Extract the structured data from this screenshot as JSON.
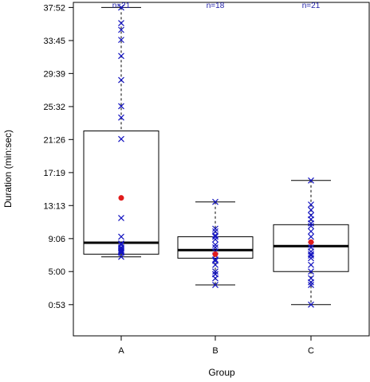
{
  "chart_data": {
    "type": "boxplot",
    "xlabel": "Group",
    "ylabel": "Duration (min:sec)",
    "categories": [
      "A",
      "B",
      "C"
    ],
    "y_ticks": [
      {
        "value": 53,
        "label": "0:53"
      },
      {
        "value": 300,
        "label": "5:00"
      },
      {
        "value": 546,
        "label": "9:06"
      },
      {
        "value": 793,
        "label": "13:13"
      },
      {
        "value": 1039,
        "label": "17:19"
      },
      {
        "value": 1286,
        "label": "21:26"
      },
      {
        "value": 1532,
        "label": "25:32"
      },
      {
        "value": 1779,
        "label": "29:39"
      },
      {
        "value": 2025,
        "label": "33:45"
      },
      {
        "value": 2272,
        "label": "37:52"
      }
    ],
    "ylim": [
      -180,
      2310
    ],
    "grid": false,
    "colors": {
      "points": "#1515c0",
      "mean": "#e11b1b",
      "n_labels": "#1e1ea8",
      "box": "#000000"
    },
    "series": [
      {
        "category": "A",
        "n_label": "n=21",
        "whisker_low": 410,
        "q1": 430,
        "median": 515,
        "q3": 1350,
        "whisker_high": 2272,
        "mean": 850,
        "points": [
          410,
          440,
          450,
          460,
          480,
          510,
          560,
          700,
          1290,
          1450,
          1535,
          1730,
          1910,
          2030,
          2105,
          2155,
          2272,
          445,
          470,
          455,
          500
        ]
      },
      {
        "category": "B",
        "n_label": "n=18",
        "whisker_low": 200,
        "q1": 400,
        "median": 460,
        "q3": 560,
        "whisker_high": 820,
        "mean": 430,
        "points": [
          200,
          250,
          280,
          300,
          350,
          390,
          420,
          450,
          480,
          500,
          540,
          570,
          600,
          620,
          820,
          280,
          380,
          560
        ]
      },
      {
        "category": "C",
        "n_label": "n=21",
        "whisker_low": 53,
        "q1": 300,
        "median": 490,
        "q3": 650,
        "whisker_high": 980,
        "mean": 520,
        "points": [
          53,
          200,
          220,
          250,
          300,
          350,
          400,
          420,
          450,
          480,
          500,
          560,
          600,
          640,
          660,
          690,
          720,
          760,
          800,
          980,
          430
        ]
      }
    ]
  }
}
